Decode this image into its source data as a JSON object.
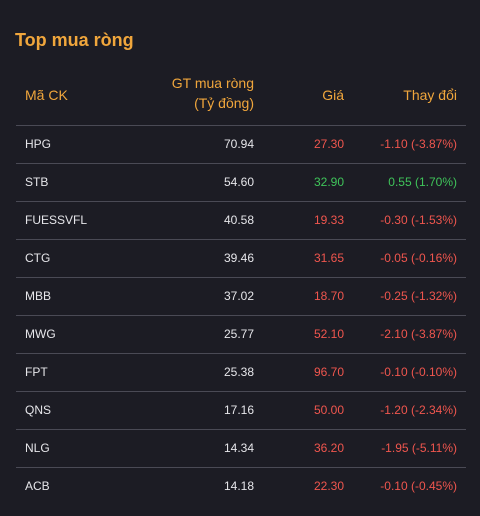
{
  "title": "Top mua ròng",
  "headers": {
    "code": "Mã CK",
    "value_line1": "GT mua ròng",
    "value_line2": "(Tỷ đồng)",
    "price": "Giá",
    "change": "Thay đổi"
  },
  "colors": {
    "accent": "#f0a63c",
    "down": "#f0564e",
    "up": "#3fc45a",
    "background": "#1c1c24"
  },
  "rows": [
    {
      "code": "HPG",
      "value": "70.94",
      "price": "27.30",
      "change": "-1.10 (-3.87%)",
      "trend": "down"
    },
    {
      "code": "STB",
      "value": "54.60",
      "price": "32.90",
      "change": "0.55 (1.70%)",
      "trend": "up"
    },
    {
      "code": "FUESSVFL",
      "value": "40.58",
      "price": "19.33",
      "change": "-0.30 (-1.53%)",
      "trend": "down"
    },
    {
      "code": "CTG",
      "value": "39.46",
      "price": "31.65",
      "change": "-0.05 (-0.16%)",
      "trend": "down"
    },
    {
      "code": "MBB",
      "value": "37.02",
      "price": "18.70",
      "change": "-0.25 (-1.32%)",
      "trend": "down"
    },
    {
      "code": "MWG",
      "value": "25.77",
      "price": "52.10",
      "change": "-2.10 (-3.87%)",
      "trend": "down"
    },
    {
      "code": "FPT",
      "value": "25.38",
      "price": "96.70",
      "change": "-0.10 (-0.10%)",
      "trend": "down"
    },
    {
      "code": "QNS",
      "value": "17.16",
      "price": "50.00",
      "change": "-1.20 (-2.34%)",
      "trend": "down"
    },
    {
      "code": "NLG",
      "value": "14.34",
      "price": "36.20",
      "change": "-1.95 (-5.11%)",
      "trend": "down"
    },
    {
      "code": "ACB",
      "value": "14.18",
      "price": "22.30",
      "change": "-0.10 (-0.45%)",
      "trend": "down"
    }
  ]
}
